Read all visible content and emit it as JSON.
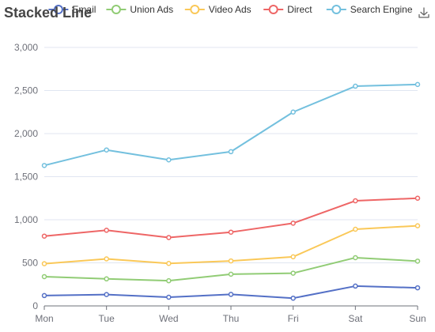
{
  "chart_data": {
    "type": "line",
    "title": "Stacked Line",
    "categories": [
      "Mon",
      "Tue",
      "Wed",
      "Thu",
      "Fri",
      "Sat",
      "Sun"
    ],
    "ylim": [
      0,
      3000
    ],
    "yticks": [
      0,
      500,
      1000,
      1500,
      2000,
      2500,
      3000
    ],
    "ytick_labels": [
      "0",
      "500",
      "1,000",
      "1,500",
      "2,000",
      "2,500",
      "3,000"
    ],
    "stacked": true,
    "grid": true,
    "legend_position": "top",
    "series": [
      {
        "name": "Email",
        "color": "#5470c6",
        "values": [
          120,
          132,
          101,
          134,
          90,
          230,
          210
        ]
      },
      {
        "name": "Union Ads",
        "color": "#91cc75",
        "values": [
          220,
          182,
          191,
          234,
          290,
          330,
          310
        ]
      },
      {
        "name": "Video Ads",
        "color": "#fac858",
        "values": [
          150,
          232,
          201,
          154,
          190,
          330,
          410
        ]
      },
      {
        "name": "Direct",
        "color": "#ee6666",
        "values": [
          320,
          332,
          301,
          334,
          390,
          330,
          320
        ]
      },
      {
        "name": "Search Engine",
        "color": "#73c0de",
        "values": [
          820,
          932,
          901,
          934,
          1290,
          1330,
          1320
        ]
      }
    ]
  },
  "toolbar": {
    "icon": "download-icon"
  }
}
